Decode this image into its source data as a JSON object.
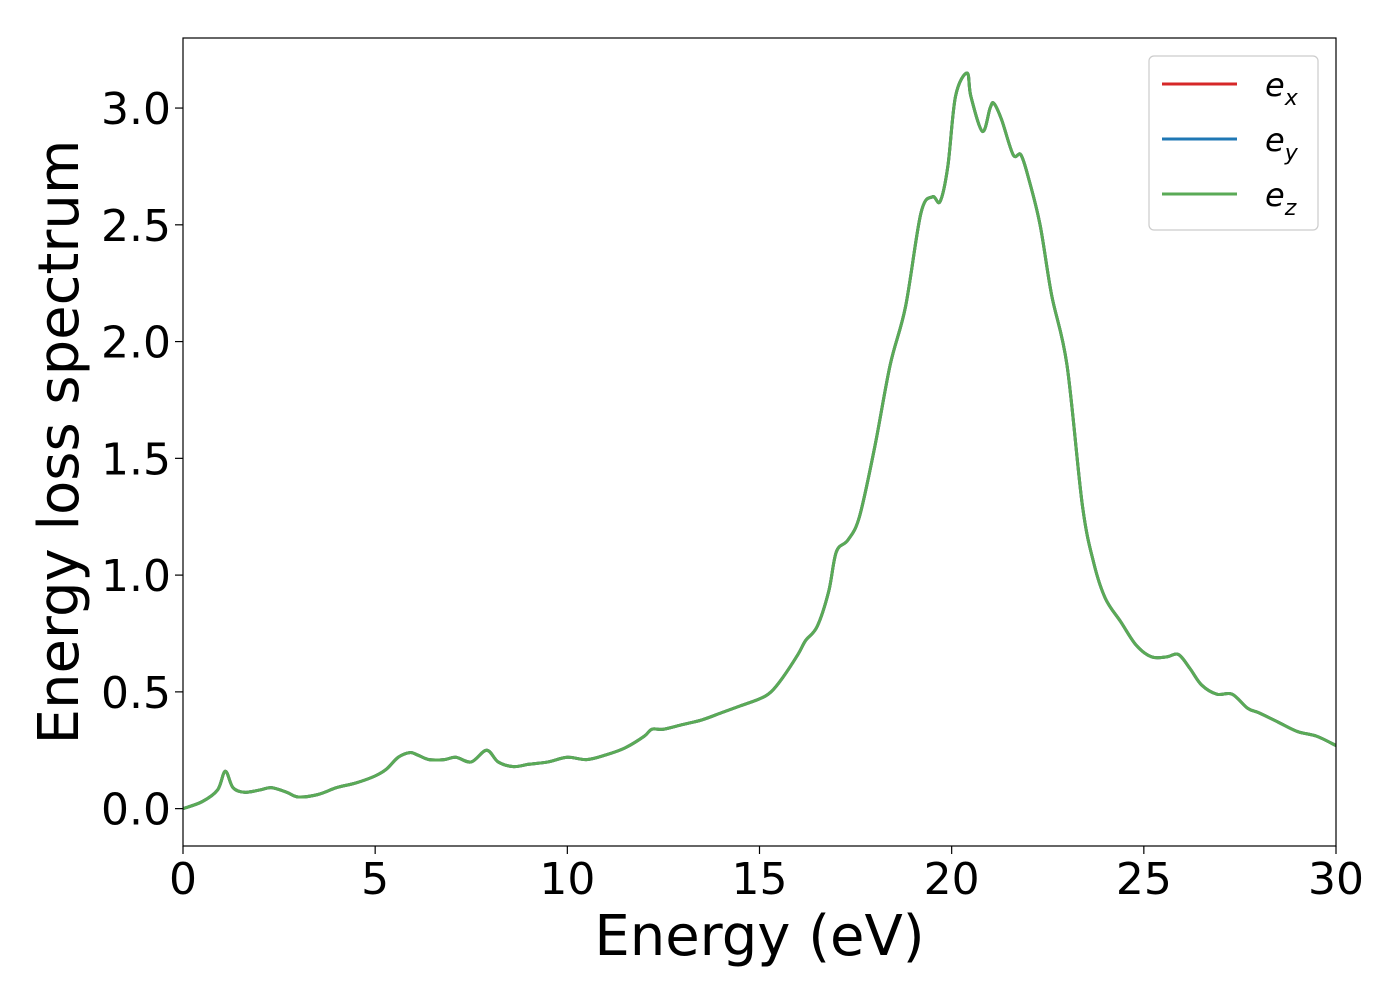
{
  "chart_data": {
    "type": "line",
    "title": "",
    "xlabel": "Energy (eV)",
    "ylabel": "Energy loss spectrum",
    "xlim": [
      0,
      30
    ],
    "ylim": [
      -0.16,
      3.3
    ],
    "xticks": [
      0,
      5,
      10,
      15,
      20,
      25,
      30
    ],
    "yticks": [
      0.0,
      0.5,
      1.0,
      1.5,
      2.0,
      2.5,
      3.0
    ],
    "xtick_labels": [
      "0",
      "5",
      "10",
      "15",
      "20",
      "25",
      "30"
    ],
    "ytick_labels": [
      "0.0",
      "0.5",
      "1.0",
      "1.5",
      "2.0",
      "2.5",
      "3.0"
    ],
    "grid": false,
    "legend_position": "top-right",
    "series": [
      {
        "name": "e",
        "subscript": "x",
        "color": "#d62728",
        "x": [
          0.0,
          0.5,
          0.9,
          1.1,
          1.3,
          1.6,
          2.0,
          2.3,
          2.7,
          3.0,
          3.5,
          4.0,
          4.5,
          5.0,
          5.3,
          5.6,
          5.9,
          6.1,
          6.4,
          6.8,
          7.1,
          7.5,
          7.9,
          8.2,
          8.6,
          9.0,
          9.5,
          10.0,
          10.5,
          11.0,
          11.5,
          12.0,
          12.2,
          12.5,
          13.0,
          13.5,
          14.0,
          14.5,
          15.0,
          15.3,
          15.6,
          16.0,
          16.2,
          16.5,
          16.8,
          17.0,
          17.3,
          17.6,
          18.0,
          18.4,
          18.8,
          19.2,
          19.5,
          19.7,
          19.9,
          20.1,
          20.4,
          20.5,
          20.8,
          21.0,
          21.1,
          21.3,
          21.6,
          21.8,
          22.0,
          22.3,
          22.6,
          23.0,
          23.4,
          23.7,
          24.0,
          24.4,
          24.8,
          25.2,
          25.6,
          25.9,
          26.2,
          26.5,
          26.9,
          27.3,
          27.7,
          28.0,
          28.5,
          29.0,
          29.5,
          30.0
        ],
        "values": [
          0.0,
          0.03,
          0.08,
          0.16,
          0.09,
          0.07,
          0.08,
          0.09,
          0.07,
          0.05,
          0.06,
          0.09,
          0.11,
          0.14,
          0.17,
          0.22,
          0.24,
          0.23,
          0.21,
          0.21,
          0.22,
          0.2,
          0.25,
          0.2,
          0.18,
          0.19,
          0.2,
          0.22,
          0.21,
          0.23,
          0.26,
          0.31,
          0.34,
          0.34,
          0.36,
          0.38,
          0.41,
          0.44,
          0.47,
          0.5,
          0.56,
          0.66,
          0.72,
          0.78,
          0.93,
          1.1,
          1.15,
          1.25,
          1.55,
          1.9,
          2.15,
          2.55,
          2.62,
          2.6,
          2.75,
          3.05,
          3.15,
          3.05,
          2.9,
          3.0,
          3.02,
          2.95,
          2.8,
          2.8,
          2.7,
          2.5,
          2.2,
          1.9,
          1.3,
          1.05,
          0.9,
          0.8,
          0.7,
          0.65,
          0.65,
          0.66,
          0.6,
          0.53,
          0.49,
          0.49,
          0.43,
          0.41,
          0.37,
          0.33,
          0.31,
          0.27
        ]
      },
      {
        "name": "e",
        "subscript": "y",
        "color": "#1f77b4",
        "x": [
          0.0,
          0.5,
          0.9,
          1.1,
          1.3,
          1.6,
          2.0,
          2.3,
          2.7,
          3.0,
          3.5,
          4.0,
          4.5,
          5.0,
          5.3,
          5.6,
          5.9,
          6.1,
          6.4,
          6.8,
          7.1,
          7.5,
          7.9,
          8.2,
          8.6,
          9.0,
          9.5,
          10.0,
          10.5,
          11.0,
          11.5,
          12.0,
          12.2,
          12.5,
          13.0,
          13.5,
          14.0,
          14.5,
          15.0,
          15.3,
          15.6,
          16.0,
          16.2,
          16.5,
          16.8,
          17.0,
          17.3,
          17.6,
          18.0,
          18.4,
          18.8,
          19.2,
          19.5,
          19.7,
          19.9,
          20.1,
          20.4,
          20.5,
          20.8,
          21.0,
          21.1,
          21.3,
          21.6,
          21.8,
          22.0,
          22.3,
          22.6,
          23.0,
          23.4,
          23.7,
          24.0,
          24.4,
          24.8,
          25.2,
          25.6,
          25.9,
          26.2,
          26.5,
          26.9,
          27.3,
          27.7,
          28.0,
          28.5,
          29.0,
          29.5,
          30.0
        ],
        "values": [
          0.0,
          0.03,
          0.08,
          0.16,
          0.09,
          0.07,
          0.08,
          0.09,
          0.07,
          0.05,
          0.06,
          0.09,
          0.11,
          0.14,
          0.17,
          0.22,
          0.24,
          0.23,
          0.21,
          0.21,
          0.22,
          0.2,
          0.25,
          0.2,
          0.18,
          0.19,
          0.2,
          0.22,
          0.21,
          0.23,
          0.26,
          0.31,
          0.34,
          0.34,
          0.36,
          0.38,
          0.41,
          0.44,
          0.47,
          0.5,
          0.56,
          0.66,
          0.72,
          0.78,
          0.93,
          1.1,
          1.15,
          1.25,
          1.55,
          1.9,
          2.15,
          2.55,
          2.62,
          2.6,
          2.75,
          3.05,
          3.15,
          3.05,
          2.9,
          3.0,
          3.02,
          2.95,
          2.8,
          2.8,
          2.7,
          2.5,
          2.2,
          1.9,
          1.3,
          1.05,
          0.9,
          0.8,
          0.7,
          0.65,
          0.65,
          0.66,
          0.6,
          0.53,
          0.49,
          0.49,
          0.43,
          0.41,
          0.37,
          0.33,
          0.31,
          0.27
        ]
      },
      {
        "name": "e",
        "subscript": "z",
        "color": "#5aaa56",
        "x": [
          0.0,
          0.5,
          0.9,
          1.1,
          1.3,
          1.6,
          2.0,
          2.3,
          2.7,
          3.0,
          3.5,
          4.0,
          4.5,
          5.0,
          5.3,
          5.6,
          5.9,
          6.1,
          6.4,
          6.8,
          7.1,
          7.5,
          7.9,
          8.2,
          8.6,
          9.0,
          9.5,
          10.0,
          10.5,
          11.0,
          11.5,
          12.0,
          12.2,
          12.5,
          13.0,
          13.5,
          14.0,
          14.5,
          15.0,
          15.3,
          15.6,
          16.0,
          16.2,
          16.5,
          16.8,
          17.0,
          17.3,
          17.6,
          18.0,
          18.4,
          18.8,
          19.2,
          19.5,
          19.7,
          19.9,
          20.1,
          20.4,
          20.5,
          20.8,
          21.0,
          21.1,
          21.3,
          21.6,
          21.8,
          22.0,
          22.3,
          22.6,
          23.0,
          23.4,
          23.7,
          24.0,
          24.4,
          24.8,
          25.2,
          25.6,
          25.9,
          26.2,
          26.5,
          26.9,
          27.3,
          27.7,
          28.0,
          28.5,
          29.0,
          29.5,
          30.0
        ],
        "values": [
          0.0,
          0.03,
          0.08,
          0.16,
          0.09,
          0.07,
          0.08,
          0.09,
          0.07,
          0.05,
          0.06,
          0.09,
          0.11,
          0.14,
          0.17,
          0.22,
          0.24,
          0.23,
          0.21,
          0.21,
          0.22,
          0.2,
          0.25,
          0.2,
          0.18,
          0.19,
          0.2,
          0.22,
          0.21,
          0.23,
          0.26,
          0.31,
          0.34,
          0.34,
          0.36,
          0.38,
          0.41,
          0.44,
          0.47,
          0.5,
          0.56,
          0.66,
          0.72,
          0.78,
          0.93,
          1.1,
          1.15,
          1.25,
          1.55,
          1.9,
          2.15,
          2.55,
          2.62,
          2.6,
          2.75,
          3.05,
          3.15,
          3.05,
          2.9,
          3.0,
          3.02,
          2.95,
          2.8,
          2.8,
          2.7,
          2.5,
          2.2,
          1.9,
          1.3,
          1.05,
          0.9,
          0.8,
          0.7,
          0.65,
          0.65,
          0.66,
          0.6,
          0.53,
          0.49,
          0.49,
          0.43,
          0.41,
          0.37,
          0.33,
          0.31,
          0.27
        ]
      }
    ]
  }
}
